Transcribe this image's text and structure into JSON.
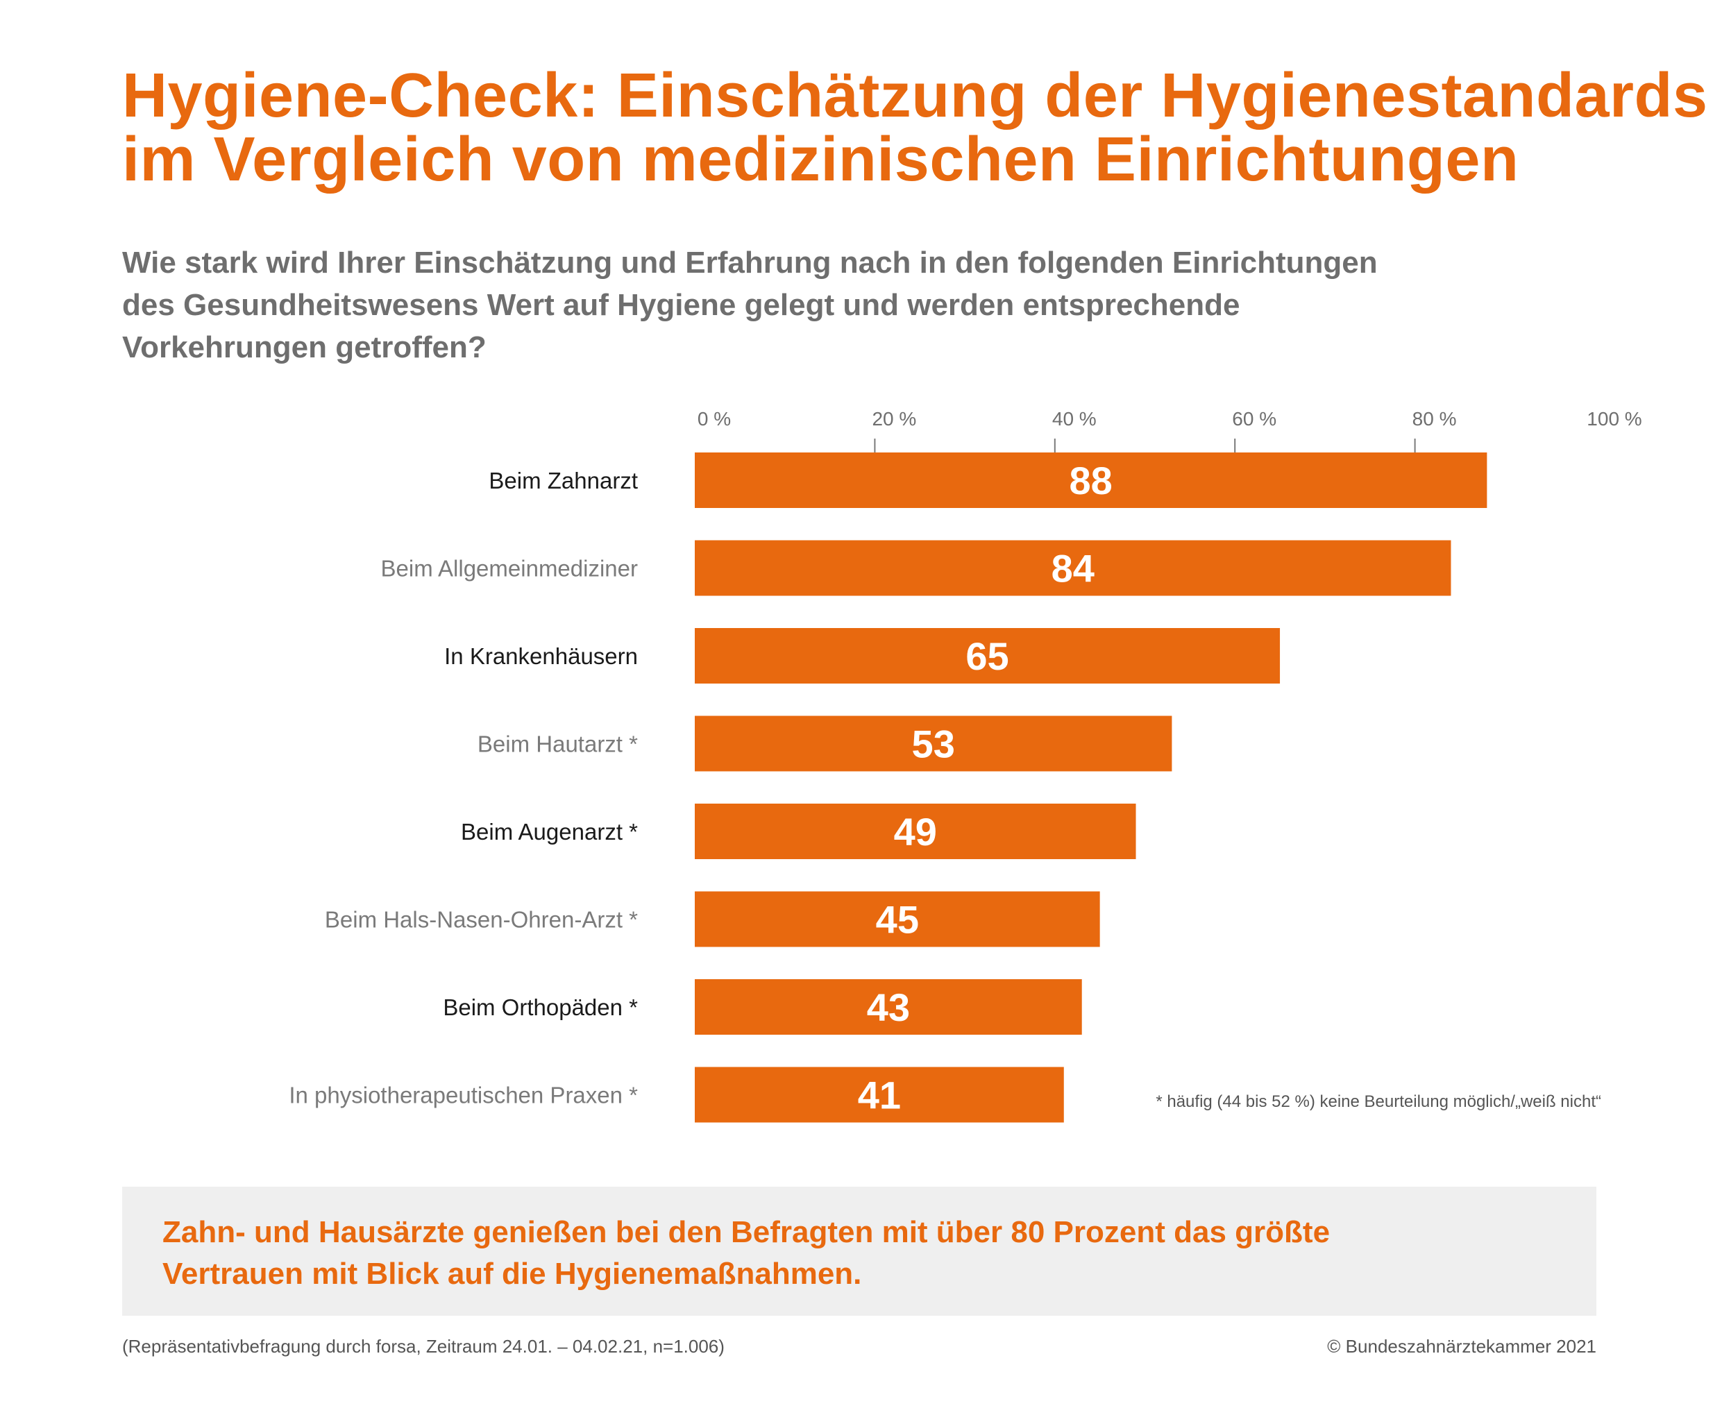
{
  "header": {
    "title_lines": [
      "Hygiene-Check: Einschätzung der Hygienestandards",
      "im Vergleich von medizinischen Einrichtungen"
    ],
    "question_lines": [
      "Wie stark wird Ihrer Einschätzung und Erfahrung nach in den folgenden Einrichtungen",
      "des Gesundheitswesens Wert auf Hygiene gelegt und werden entsprechende",
      "Vorkehrungen getroffen?"
    ]
  },
  "chart_data": {
    "type": "bar",
    "orientation": "horizontal",
    "categories": [
      "Beim Zahnarzt",
      "Beim Allgemeinmediziner",
      "In Krankenhäusern",
      "Beim Hautarzt *",
      "Beim Augenarzt *",
      "Beim Hals-Nasen-Ohren-Arzt *",
      "Beim Orthopäden *",
      "In physiotherapeutischen Praxen *"
    ],
    "values": [
      88,
      84,
      65,
      53,
      49,
      45,
      43,
      41
    ],
    "tick_labels": [
      "0 %",
      "20 %",
      "40 %",
      "60 %",
      "80 %",
      "100 %"
    ],
    "ticks": [
      0,
      20,
      40,
      60,
      80,
      100
    ],
    "xlim": [
      0,
      100
    ],
    "unit": "%",
    "footnote": "* häufig (44 bis 52 %) keine Beurteilung möglich/„weiß nicht“",
    "colors": {
      "bar": "#E8690F",
      "label_dark": "#1A1A1A",
      "label_light": "#7A7A7A",
      "axis": "#7A7A7A"
    }
  },
  "conclusion": {
    "lines": [
      "Zahn- und Hausärzte genießen bei den Befragten mit über 80 Prozent das größte",
      "Vertrauen mit Blick auf die Hygienemaßnahmen."
    ]
  },
  "footer": {
    "source": "(Repräsentativbefragung durch forsa, Zeitraum 24.01. – 04.02.21, n=1.006)",
    "copyright": "© Bundeszahnärztekammer 2021"
  }
}
